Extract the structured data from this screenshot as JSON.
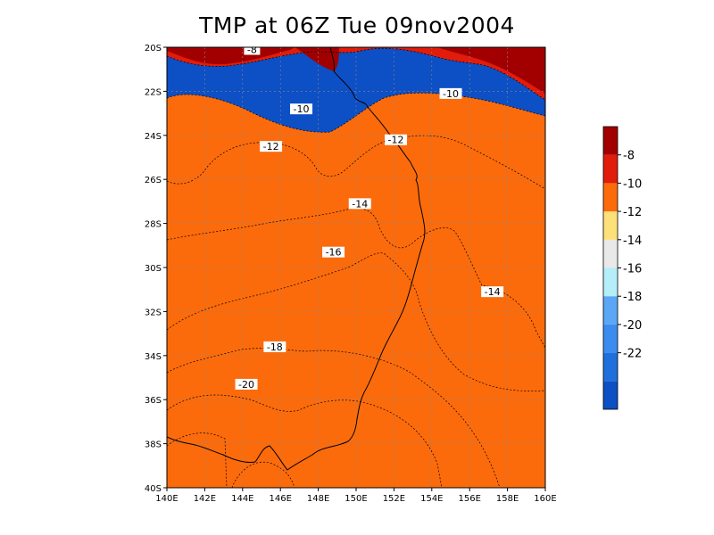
{
  "chart_data": {
    "type": "heatmap",
    "title": "TMP at 06Z Tue 09nov2004",
    "x_ticks": [
      "140E",
      "142E",
      "144E",
      "146E",
      "148E",
      "150E",
      "152E",
      "154E",
      "156E",
      "158E",
      "160E"
    ],
    "y_ticks": [
      "20S",
      "22S",
      "24S",
      "26S",
      "28S",
      "30S",
      "32S",
      "34S",
      "36S",
      "38S",
      "40S"
    ],
    "xlim": [
      140,
      160
    ],
    "ylim": [
      -40,
      -20
    ],
    "grid": true,
    "contour_levels": [
      -22,
      -20,
      -18,
      -16,
      -14,
      -12,
      -10,
      -8
    ],
    "colorbar": {
      "placement": "right",
      "tick_labels": [
        "-8",
        "-10",
        "-12",
        "-14",
        "-16",
        "-18",
        "-20",
        "-22"
      ],
      "colors": [
        "#0d4fc4",
        "#1f70dc",
        "#3c8cf0",
        "#5ba6f5",
        "#b4eef9",
        "#e9e9e9",
        "#fde07a",
        "#fb6b0c",
        "#e21c0a",
        "#a20000"
      ]
    },
    "contour_labels": [
      {
        "text": "-8",
        "lon": 144.5,
        "lat": -20.1
      },
      {
        "text": "-10",
        "lon": 147.1,
        "lat": -22.8
      },
      {
        "text": "-10",
        "lon": 155.0,
        "lat": -22.1
      },
      {
        "text": "-12",
        "lon": 152.1,
        "lat": -24.2
      },
      {
        "text": "-12",
        "lon": 145.5,
        "lat": -24.5
      },
      {
        "text": "-14",
        "lon": 150.2,
        "lat": -27.1
      },
      {
        "text": "-16",
        "lon": 148.8,
        "lat": -29.3
      },
      {
        "text": "-14",
        "lon": 157.2,
        "lat": -31.1
      },
      {
        "text": "-18",
        "lon": 145.7,
        "lat": -33.6
      },
      {
        "text": "-20",
        "lon": 144.2,
        "lat": -35.3
      }
    ]
  }
}
